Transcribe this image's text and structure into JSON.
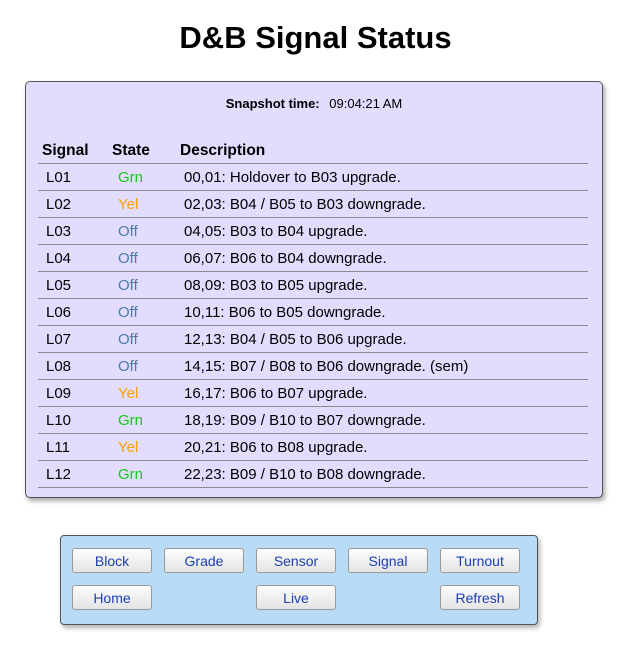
{
  "page": {
    "title": "D&B Signal Status"
  },
  "snapshot": {
    "label": "Snapshot time:",
    "time": "09:04:21 AM"
  },
  "table": {
    "headers": [
      "Signal",
      "State",
      "Description"
    ],
    "rows": [
      {
        "signal": "L01",
        "state": "Grn",
        "desc": "00,01: Holdover to B03 upgrade."
      },
      {
        "signal": "L02",
        "state": "Yel",
        "desc": "02,03: B04 / B05 to B03 downgrade."
      },
      {
        "signal": "L03",
        "state": "Off",
        "desc": "04,05: B03 to B04 upgrade."
      },
      {
        "signal": "L04",
        "state": "Off",
        "desc": "06,07: B06 to B04 downgrade."
      },
      {
        "signal": "L05",
        "state": "Off",
        "desc": "08,09: B03 to B05 upgrade."
      },
      {
        "signal": "L06",
        "state": "Off",
        "desc": "10,11: B06 to B05 downgrade."
      },
      {
        "signal": "L07",
        "state": "Off",
        "desc": "12,13: B04 / B05 to B06 upgrade."
      },
      {
        "signal": "L08",
        "state": "Off",
        "desc": "14,15: B07 / B08 to B06 downgrade. (sem)"
      },
      {
        "signal": "L09",
        "state": "Yel",
        "desc": "16,17: B06 to B07 upgrade."
      },
      {
        "signal": "L10",
        "state": "Grn",
        "desc": "18,19: B09 / B10 to B07 downgrade."
      },
      {
        "signal": "L11",
        "state": "Yel",
        "desc": "20,21: B06 to B08 upgrade."
      },
      {
        "signal": "L12",
        "state": "Grn",
        "desc": "22,23: B09 / B10 to B08 downgrade."
      }
    ]
  },
  "nav": {
    "block": "Block",
    "grade": "Grade",
    "sensor": "Sensor",
    "signal": "Signal",
    "turnout": "Turnout",
    "home": "Home",
    "live": "Live",
    "refresh": "Refresh"
  },
  "colors": {
    "panel_bg": "#e2dcff",
    "nav_bg": "#b8dcf5",
    "state_grn": "#1fc51f",
    "state_yel": "#f5a100",
    "state_off": "#4f7ba3",
    "link": "#1a3fb0"
  }
}
